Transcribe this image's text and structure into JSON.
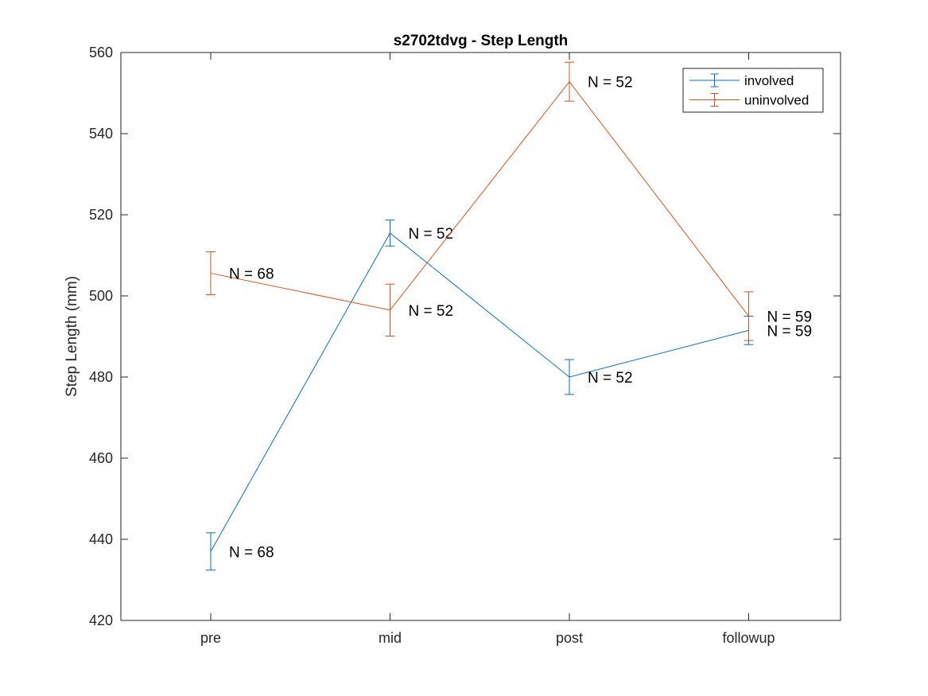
{
  "chart_data": {
    "type": "line",
    "title": "s2702tdvg - Step Length",
    "xlabel": "",
    "ylabel": "Step Length (mm)",
    "categories": [
      "pre",
      "mid",
      "post",
      "followup"
    ],
    "ylim": [
      420,
      560
    ],
    "yticks": [
      420,
      440,
      460,
      480,
      500,
      520,
      540,
      560
    ],
    "grid": false,
    "legend_position": "top-right",
    "series": [
      {
        "name": "involved",
        "color": "#0072BD",
        "values": [
          437,
          515.5,
          480,
          491.5
        ],
        "error": [
          4.6,
          3.2,
          4.3,
          3.5
        ],
        "n_labels": [
          "N = 68",
          "N = 52",
          "N = 52",
          "N = 59"
        ]
      },
      {
        "name": "uninvolved",
        "color": "#D95319",
        "values": [
          505.6,
          496.5,
          552.8,
          495
        ],
        "error": [
          5.3,
          6.4,
          4.8,
          6.0
        ],
        "n_labels": [
          "N = 68",
          "N = 52",
          "N = 52",
          "N = 59"
        ]
      }
    ]
  }
}
